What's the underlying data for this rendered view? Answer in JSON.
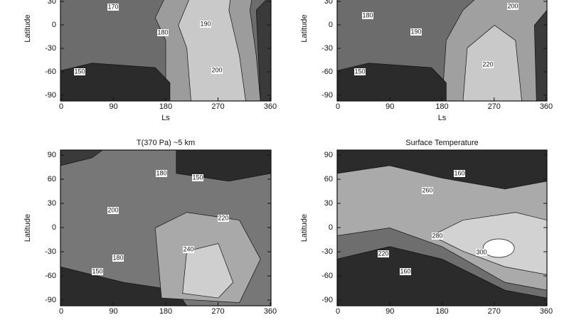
{
  "chart_data": [
    {
      "type": "contour",
      "xlabel": "Ls",
      "ylabel": "Latitude",
      "xlim": [
        0,
        360
      ],
      "ylim": [
        -90,
        90
      ],
      "xticks": [
        0,
        90,
        180,
        270,
        360
      ],
      "yticks": [
        30,
        0,
        -30,
        -60,
        -90
      ],
      "contour_labels": [
        170,
        180,
        190,
        200,
        150
      ]
    },
    {
      "type": "contour",
      "xlabel": "Ls",
      "ylabel": "Latitude",
      "xlim": [
        0,
        360
      ],
      "ylim": [
        -90,
        90
      ],
      "xticks": [
        0,
        90,
        180,
        270,
        360
      ],
      "yticks": [
        30,
        0,
        -30,
        -60,
        -90
      ],
      "contour_labels": [
        180,
        190,
        200,
        220,
        150
      ]
    },
    {
      "type": "contour",
      "title": "T(370 Pa) ~5 km",
      "ylabel": "Latitude",
      "xlim": [
        0,
        360
      ],
      "ylim": [
        -90,
        90
      ],
      "xticks": [
        0,
        90,
        180,
        270,
        360
      ],
      "yticks": [
        90,
        60,
        30,
        0,
        -30,
        -60,
        -90
      ],
      "contour_labels": [
        180,
        150,
        200,
        220,
        240,
        180,
        150
      ]
    },
    {
      "type": "contour",
      "title": "Surface Temperature",
      "ylabel": "Latitude",
      "xlim": [
        0,
        360
      ],
      "ylim": [
        -90,
        90
      ],
      "xticks": [
        0,
        90,
        180,
        270,
        360
      ],
      "yticks": [
        90,
        60,
        30,
        0,
        -30,
        -60,
        -90
      ],
      "contour_labels": [
        160,
        260,
        280,
        300,
        220,
        160
      ]
    }
  ]
}
